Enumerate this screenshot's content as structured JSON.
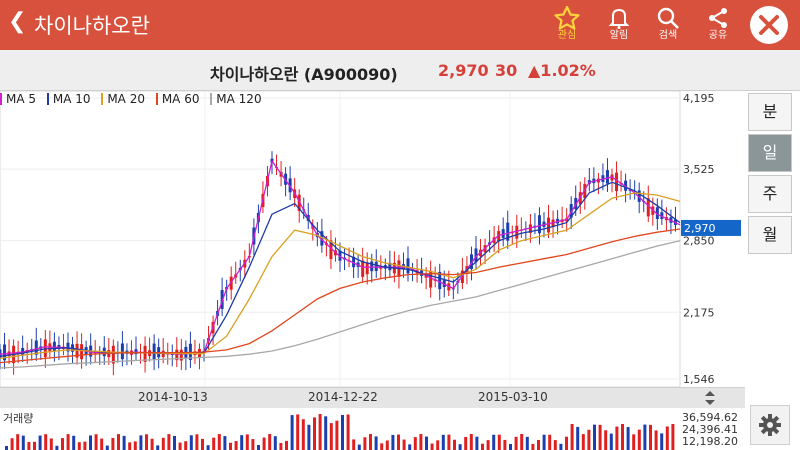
{
  "app": {
    "title": "차이나하오란",
    "back_icon": "chevron-left-icon",
    "toolbar": [
      {
        "label": "관심",
        "icon": "star-icon",
        "active": true
      },
      {
        "label": "알림",
        "icon": "bell-icon",
        "active": false
      },
      {
        "label": "검색",
        "icon": "search-icon",
        "active": false
      },
      {
        "label": "공유",
        "icon": "share-icon",
        "active": false
      }
    ],
    "close_icon": "close-icon"
  },
  "stock": {
    "name": "차이나하오란 (A900090)",
    "price": "2,970",
    "change": "30",
    "change_pct": "▲1.02%",
    "color_up": "#d6403a"
  },
  "legend": [
    {
      "label": "MA 5",
      "color": "#d11fd1"
    },
    {
      "label": "MA 10",
      "color": "#1f3aa8"
    },
    {
      "label": "MA 20",
      "color": "#d9a021"
    },
    {
      "label": "MA 60",
      "color": "#e0461f"
    },
    {
      "label": "MA 120",
      "color": "#a8a8a8"
    }
  ],
  "periods": [
    {
      "label": "분",
      "active": false
    },
    {
      "label": "일",
      "active": true
    },
    {
      "label": "주",
      "active": false
    },
    {
      "label": "월",
      "active": false
    }
  ],
  "chart_data": {
    "type": "line",
    "y_ticks": [
      "4,195",
      "3,525",
      "2,850",
      "2,175",
      "1,546"
    ],
    "ylim": [
      1546,
      4195
    ],
    "current_price_label": "2,970",
    "x_tick_labels": [
      "2014-10-13",
      "2014-12-22",
      "2015-03-10"
    ],
    "series": [
      {
        "name": "MA 5",
        "color": "#d11fd1",
        "values": [
          1780,
          1800,
          1850,
          1840,
          1800,
          1790,
          1800,
          1790,
          1780,
          1800,
          2400,
          2700,
          3600,
          3300,
          2900,
          2700,
          2600,
          2600,
          2600,
          2500,
          2400,
          2700,
          2900,
          2950,
          3000,
          3050,
          3400,
          3450,
          3300,
          3100,
          3000
        ]
      },
      {
        "name": "MA 10",
        "color": "#1f3aa8",
        "values": [
          1760,
          1790,
          1830,
          1840,
          1810,
          1790,
          1795,
          1790,
          1785,
          1790,
          2150,
          2600,
          3100,
          3200,
          2950,
          2750,
          2650,
          2600,
          2580,
          2520,
          2460,
          2650,
          2850,
          2920,
          2960,
          3020,
          3300,
          3400,
          3320,
          3180,
          3020
        ]
      },
      {
        "name": "MA 20",
        "color": "#d9a021",
        "values": [
          1740,
          1770,
          1800,
          1820,
          1810,
          1800,
          1795,
          1790,
          1785,
          1785,
          1950,
          2300,
          2700,
          2950,
          2900,
          2800,
          2700,
          2640,
          2600,
          2560,
          2500,
          2580,
          2760,
          2850,
          2900,
          2950,
          3100,
          3250,
          3300,
          3280,
          3220
        ]
      },
      {
        "name": "MA 60",
        "color": "#e0461f",
        "values": [
          1700,
          1720,
          1740,
          1760,
          1780,
          1790,
          1795,
          1795,
          1795,
          1800,
          1820,
          1880,
          2000,
          2150,
          2300,
          2400,
          2460,
          2500,
          2530,
          2540,
          2530,
          2550,
          2600,
          2640,
          2680,
          2720,
          2780,
          2840,
          2890,
          2930,
          2960
        ]
      },
      {
        "name": "MA 120",
        "color": "#a8a8a8",
        "values": [
          1650,
          1660,
          1675,
          1690,
          1700,
          1710,
          1720,
          1730,
          1740,
          1750,
          1760,
          1780,
          1810,
          1860,
          1920,
          1990,
          2060,
          2130,
          2190,
          2240,
          2280,
          2320,
          2380,
          2440,
          2500,
          2560,
          2620,
          2680,
          2740,
          2800,
          2850
        ]
      }
    ]
  },
  "volume": {
    "label": "거래량",
    "ticks": [
      "36,594.62",
      "24,396.41",
      "12,198.20"
    ]
  },
  "settings_icon": "gear-icon"
}
